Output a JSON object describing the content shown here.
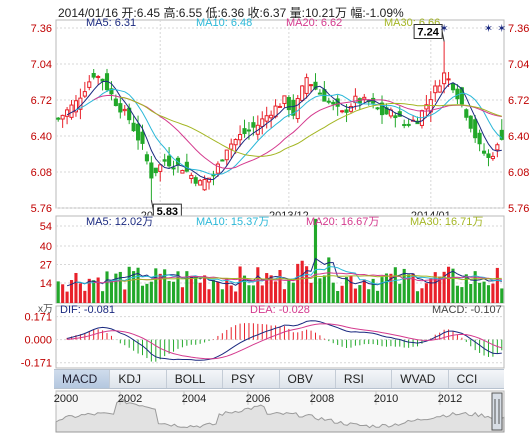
{
  "header": {
    "date": "2014/01/16",
    "open_label": "开:",
    "open": "6.45",
    "high_label": "高:",
    "high": "6.55",
    "low_label": "低:",
    "low": "6.36",
    "close_label": "收:",
    "close": "6.37",
    "volume_label": "量:",
    "volume": "10.21万",
    "change_label": "幅:",
    "change": "-1.09%"
  },
  "colors": {
    "up": "#e8212a",
    "down": "#22a82a",
    "ma5": "#1b2a80",
    "ma10": "#2bb8d8",
    "ma20": "#d43a8e",
    "ma30": "#a4b624",
    "dif": "#1b2a80",
    "dea": "#d43a8e",
    "axis": "#c00000",
    "grid": "#d7d7d7"
  },
  "chart_data": [
    {
      "type": "candlestick",
      "name": "price",
      "legend": {
        "ma5": "MA5: 6.31",
        "ma10": "MA10: 6.48",
        "ma20": "MA20: 6.62",
        "ma30": "MA30: 6.66"
      },
      "y_ticks": [
        "7.36",
        "7.04",
        "6.72",
        "6.40",
        "6.08",
        "5.76"
      ],
      "ylim": [
        5.76,
        7.36
      ],
      "x_ticks": [
        {
          "label": "2013/11",
          "index": 23
        },
        {
          "label": "2013/12",
          "index": 52
        },
        {
          "label": "2014/01",
          "index": 84
        }
      ],
      "annotations": [
        {
          "label": "5.83",
          "index": 21,
          "value": 5.83
        },
        {
          "label": "7.24",
          "index": 87,
          "value": 7.24
        }
      ],
      "event_markers": [
        87,
        97,
        100
      ],
      "anchors": [
        [
          0,
          6.55
        ],
        [
          4,
          6.7
        ],
        [
          8,
          6.95
        ],
        [
          10,
          6.9
        ],
        [
          13,
          6.7
        ],
        [
          16,
          6.55
        ],
        [
          19,
          6.3
        ],
        [
          21,
          6.05
        ],
        [
          24,
          6.18
        ],
        [
          28,
          6.12
        ],
        [
          32,
          5.98
        ],
        [
          35,
          6.05
        ],
        [
          38,
          6.3
        ],
        [
          41,
          6.4
        ],
        [
          45,
          6.5
        ],
        [
          48,
          6.62
        ],
        [
          51,
          6.72
        ],
        [
          53,
          6.6
        ],
        [
          56,
          6.92
        ],
        [
          58,
          6.82
        ],
        [
          61,
          6.7
        ],
        [
          64,
          6.6
        ],
        [
          67,
          6.72
        ],
        [
          70,
          6.7
        ],
        [
          73,
          6.6
        ],
        [
          76,
          6.6
        ],
        [
          78,
          6.5
        ],
        [
          81,
          6.55
        ],
        [
          84,
          6.75
        ],
        [
          87,
          6.95
        ],
        [
          89,
          6.85
        ],
        [
          92,
          6.6
        ],
        [
          95,
          6.3
        ],
        [
          97,
          6.2
        ],
        [
          99,
          6.3
        ],
        [
          100,
          6.37
        ]
      ],
      "ohlc_count": 101
    },
    {
      "type": "bar",
      "name": "volume",
      "unit": "x万",
      "legend": {
        "ma5": "MA5: 12.02万",
        "ma10": "MA10: 15.37万",
        "ma20": "MA20: 16.67万",
        "ma30": "MA30: 16.71万"
      },
      "y_ticks": [
        "54",
        "40",
        "27",
        "14"
      ],
      "ylim": [
        0,
        54
      ]
    },
    {
      "type": "line",
      "name": "MACD",
      "legend": {
        "dif": "DIF: -0.081",
        "dea": "DEA: -0.028",
        "macd": "MACD: -0.107"
      },
      "y_ticks": [
        "0.171",
        "0.000",
        "-0.171"
      ],
      "ylim": [
        -0.21,
        0.19
      ]
    },
    {
      "type": "area",
      "name": "overview",
      "x_ticks": [
        "2000",
        "2002",
        "2004",
        "2006",
        "2008",
        "2010",
        "2012"
      ]
    }
  ],
  "tabs": [
    "MACD",
    "KDJ",
    "BOLL",
    "PSY",
    "OBV",
    "RSI",
    "WVAD",
    "CCI"
  ],
  "active_tab": 0
}
